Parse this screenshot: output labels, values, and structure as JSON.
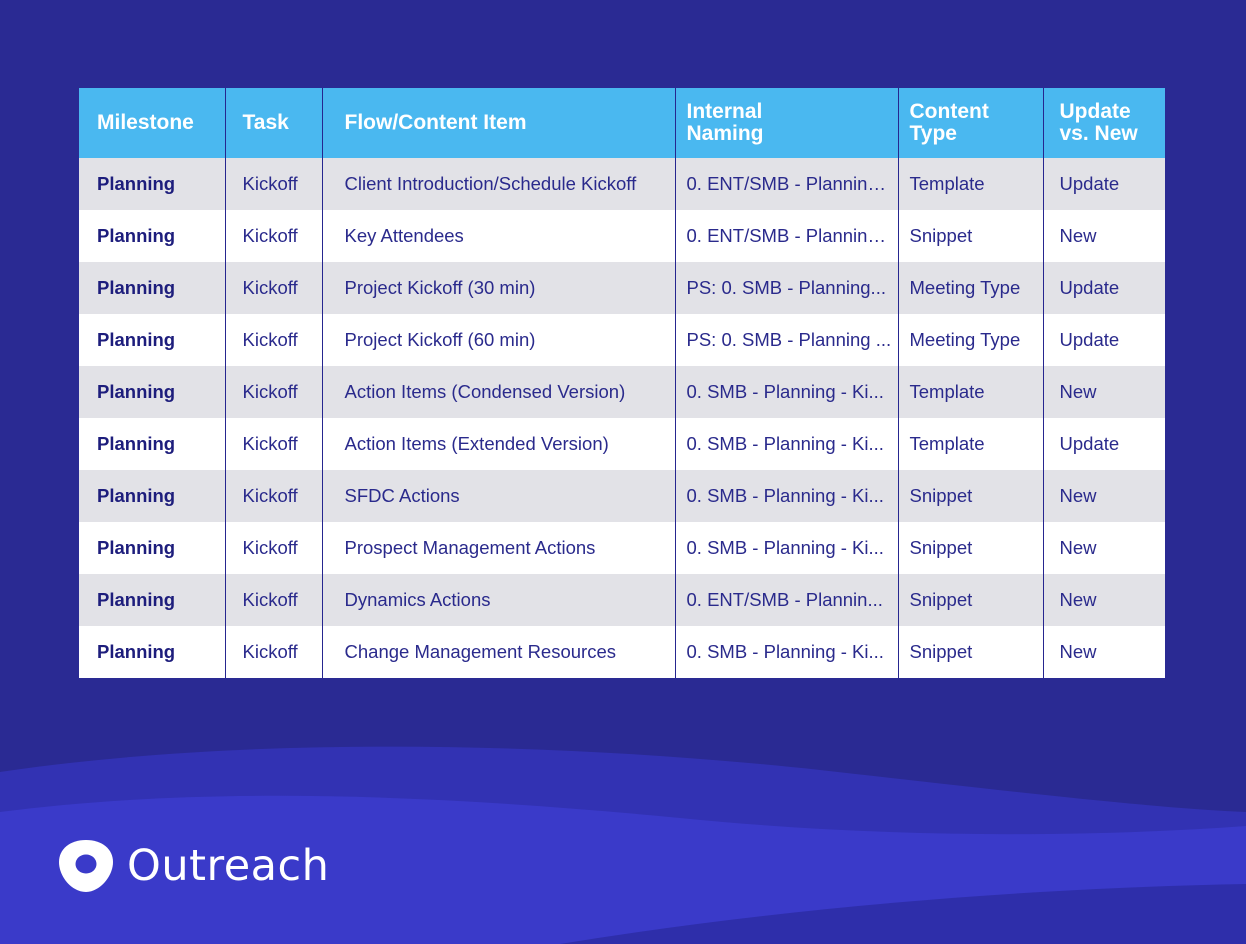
{
  "table": {
    "headers": [
      [
        "Milestone"
      ],
      [
        "Task"
      ],
      [
        "Flow/Content Item"
      ],
      [
        "Internal",
        "Naming"
      ],
      [
        "Content",
        "Type"
      ],
      [
        "Update",
        "vs. New"
      ]
    ],
    "rows": [
      [
        "Planning",
        "Kickoff",
        "Client Introduction/Schedule Kickoff",
        "0. ENT/SMB - Planning...",
        "Template",
        "Update"
      ],
      [
        "Planning",
        "Kickoff",
        "Key Attendees",
        "0. ENT/SMB - Planning...",
        "Snippet",
        "New"
      ],
      [
        "Planning",
        "Kickoff",
        "Project Kickoff (30 min)",
        "PS: 0. SMB - Planning...",
        "Meeting Type",
        "Update"
      ],
      [
        "Planning",
        "Kickoff",
        "Project Kickoff (60 min)",
        "PS: 0. SMB - Planning ...",
        "Meeting Type",
        "Update"
      ],
      [
        "Planning",
        "Kickoff",
        "Action Items (Condensed Version)",
        "0. SMB - Planning - Ki...",
        "Template",
        "New"
      ],
      [
        "Planning",
        "Kickoff",
        "Action Items (Extended Version)",
        "0. SMB - Planning - Ki...",
        "Template",
        "Update"
      ],
      [
        "Planning",
        "Kickoff",
        "SFDC Actions",
        "0. SMB - Planning - Ki...",
        "Snippet",
        "New"
      ],
      [
        "Planning",
        "Kickoff",
        "Prospect Management Actions",
        "0. SMB - Planning - Ki...",
        "Snippet",
        "New"
      ],
      [
        "Planning",
        "Kickoff",
        "Dynamics Actions",
        "0. ENT/SMB - Plannin...",
        "Snippet",
        "New"
      ],
      [
        "Planning",
        "Kickoff",
        "Change Management Resources",
        "0. SMB - Planning - Ki...",
        "Snippet",
        "New"
      ]
    ]
  },
  "brand": {
    "logo_icon": "outreach-logo-icon",
    "name": "Outreach"
  },
  "colors": {
    "background": "#2a2a93",
    "header": "#4ab8f0",
    "row_alt": "#e2e2e7",
    "text": "#2a2a8c",
    "wave": "#3a3ac9"
  }
}
